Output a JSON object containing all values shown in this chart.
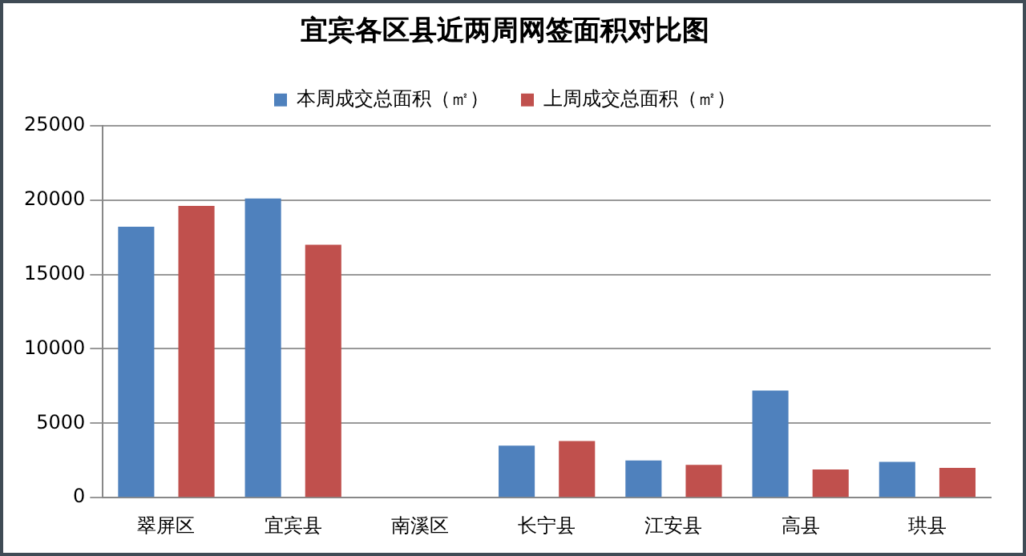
{
  "chart_data": {
    "type": "bar",
    "title": "宜宾各区县近两周网签面积对比图",
    "categories": [
      "翠屏区",
      "宜宾县",
      "南溪区",
      "长宁县",
      "江安县",
      "高县",
      "珙县"
    ],
    "series": [
      {
        "name": "本周成交总面积（㎡）",
        "color": "#4f81bd",
        "values": [
          18200,
          20100,
          0,
          3500,
          2500,
          7200,
          2400
        ]
      },
      {
        "name": "上周成交总面积（㎡）",
        "color": "#c0504d",
        "values": [
          19600,
          17000,
          0,
          3800,
          2200,
          1900,
          2000
        ]
      }
    ],
    "ylim": [
      0,
      25000
    ],
    "yticks": [
      0,
      5000,
      10000,
      15000,
      20000,
      25000
    ],
    "grid": "y",
    "legend": "top"
  }
}
